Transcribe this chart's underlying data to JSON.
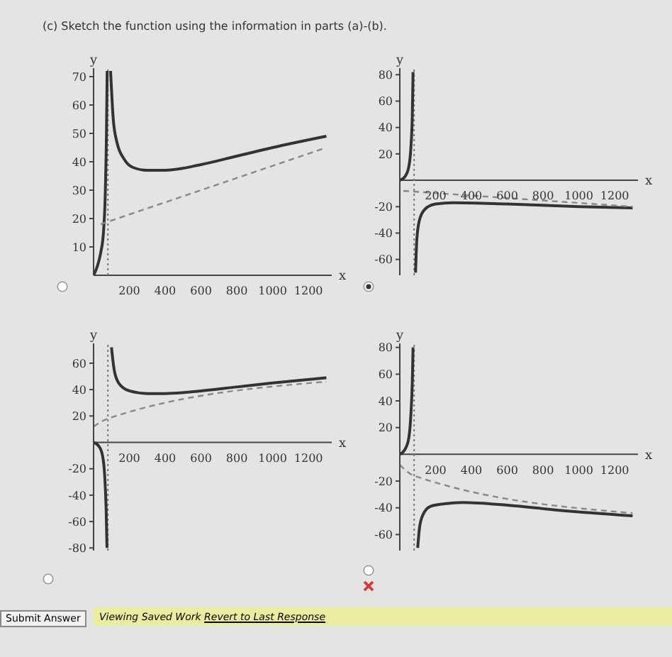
{
  "chart_data": [
    {
      "type": "line",
      "title": "(c) Sketch the function using the information in parts (a)-(b).",
      "xlabel": "x",
      "ylabel": "y",
      "xlim": [
        0,
        1330
      ],
      "xticks": [
        200,
        400,
        600,
        800,
        1000,
        1200
      ],
      "ylim": [
        0,
        73
      ],
      "yticks": [
        10,
        20,
        30,
        40,
        50,
        60,
        70
      ],
      "grid": false,
      "marker": "none",
      "ref_lines": [
        {
          "axis": "x",
          "value": 80,
          "color": "#777777",
          "line_style": "dotted"
        }
      ],
      "series": [
        {
          "color": "#333333",
          "line_style": "solid",
          "x": [
            0,
            20,
            40,
            55,
            65,
            72,
            76
          ],
          "values": [
            0,
            3,
            8,
            15,
            28,
            50,
            72
          ]
        },
        {
          "color": "#333333",
          "line_style": "solid",
          "x": [
            95,
            110,
            130,
            170,
            220,
            300,
            400,
            600,
            800,
            1000,
            1300
          ],
          "values": [
            72,
            55,
            47,
            41,
            38,
            37,
            37,
            39,
            42,
            45,
            49
          ]
        },
        {
          "color": "#888888",
          "line_style": "dashed",
          "x": [
            40,
            1300
          ],
          "values": [
            18,
            45
          ]
        }
      ]
    },
    {
      "type": "line",
      "xlabel": "x",
      "ylabel": "y",
      "xlim": [
        0,
        1330
      ],
      "xticks": [
        200,
        400,
        600,
        800,
        1000,
        1200
      ],
      "ylim": [
        -72,
        85
      ],
      "yticks": [
        -60,
        -40,
        -20,
        20,
        40,
        60,
        80
      ],
      "grid": false,
      "marker": "none",
      "ref_lines": [
        {
          "axis": "x",
          "value": 80,
          "color": "#777777",
          "line_style": "dotted"
        }
      ],
      "series": [
        {
          "color": "#333333",
          "line_style": "solid",
          "x": [
            0,
            30,
            50,
            62,
            70,
            74
          ],
          "values": [
            0,
            3,
            10,
            25,
            50,
            82
          ]
        },
        {
          "color": "#333333",
          "line_style": "solid",
          "x": [
            88,
            95,
            110,
            140,
            200,
            300,
            600,
            1000,
            1300
          ],
          "values": [
            -70,
            -45,
            -30,
            -22,
            -18,
            -17,
            -18,
            -20,
            -21
          ]
        },
        {
          "color": "#888888",
          "line_style": "dashed",
          "x": [
            20,
            1300
          ],
          "values": [
            -8,
            -20
          ]
        }
      ]
    },
    {
      "type": "line",
      "xlabel": "x",
      "ylabel": "y",
      "xlim": [
        0,
        1330
      ],
      "xticks": [
        200,
        400,
        600,
        800,
        1000,
        1200
      ],
      "ylim": [
        -82,
        75
      ],
      "yticks": [
        -80,
        -60,
        -40,
        -20,
        20,
        40,
        60
      ],
      "grid": false,
      "marker": "none",
      "ref_lines": [
        {
          "axis": "x",
          "value": 80,
          "color": "#777777",
          "line_style": "dotted"
        }
      ],
      "series": [
        {
          "color": "#333333",
          "line_style": "solid",
          "x": [
            0,
            30,
            50,
            62,
            70,
            75
          ],
          "values": [
            0,
            -3,
            -10,
            -25,
            -50,
            -80
          ]
        },
        {
          "color": "#333333",
          "line_style": "solid",
          "x": [
            100,
            115,
            140,
            200,
            300,
            400,
            600,
            800,
            1000,
            1300
          ],
          "values": [
            72,
            55,
            45,
            39,
            37,
            37,
            39,
            42,
            45,
            49
          ]
        },
        {
          "color": "#888888",
          "line_style": "dashed",
          "x": [
            0,
            80,
            1300
          ],
          "values": [
            12,
            18,
            46
          ]
        }
      ]
    },
    {
      "type": "line",
      "xlabel": "x",
      "ylabel": "y",
      "xlim": [
        0,
        1330
      ],
      "xticks": [
        200,
        400,
        600,
        800,
        1000,
        1200
      ],
      "ylim": [
        -72,
        83
      ],
      "yticks": [
        -60,
        -40,
        -20,
        20,
        40,
        60,
        80
      ],
      "grid": false,
      "marker": "none",
      "ref_lines": [
        {
          "axis": "x",
          "value": 80,
          "color": "#777777",
          "line_style": "dotted"
        }
      ],
      "annotations": [
        "Submit Answer",
        "Viewing Saved Work",
        "Revert to Last Response"
      ],
      "series": [
        {
          "color": "#333333",
          "line_style": "solid",
          "x": [
            0,
            30,
            50,
            62,
            70,
            74
          ],
          "values": [
            0,
            4,
            12,
            30,
            55,
            80
          ]
        },
        {
          "color": "#333333",
          "line_style": "solid",
          "x": [
            100,
            110,
            130,
            170,
            250,
            350,
            600,
            900,
            1300
          ],
          "values": [
            -70,
            -55,
            -45,
            -39,
            -37,
            -36,
            -38,
            -42,
            -46
          ]
        },
        {
          "color": "#888888",
          "line_style": "dashed",
          "x": [
            0,
            80,
            1300
          ],
          "values": [
            -8,
            -16,
            -44
          ]
        }
      ]
    }
  ]
}
